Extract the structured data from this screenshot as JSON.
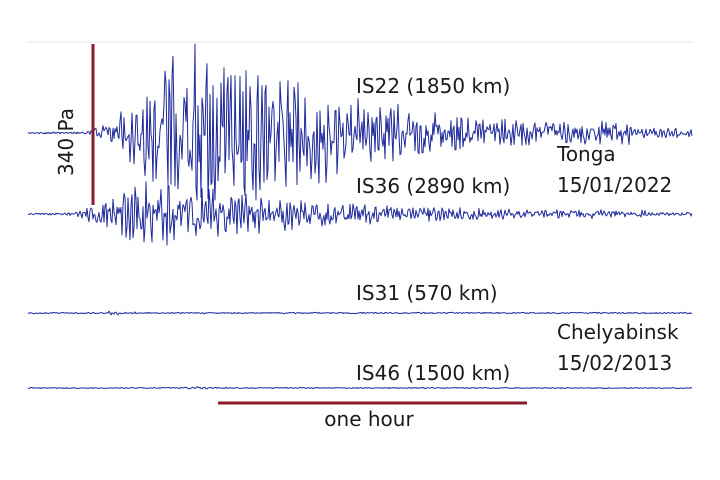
{
  "chart_data": {
    "type": "line",
    "title": "",
    "xlabel": "",
    "ylabel": "",
    "grid": false,
    "scale_bars": {
      "amplitude": {
        "label": "340 Pa",
        "value_pa": 340
      },
      "time": {
        "label": "one hour",
        "value_s": 3600
      }
    },
    "events": [
      {
        "name": "Tonga",
        "date": "15/01/2022"
      },
      {
        "name": "Chelyabinsk",
        "date": "15/02/2013"
      }
    ],
    "series": [
      {
        "station": "IS22 (1850 km)",
        "event": 0,
        "peak_amplitude_pa": 340,
        "signal_start_h": 0.17,
        "signal_peak_h": 0.55,
        "signal_end_h": 1.65
      },
      {
        "station": "IS36 (2890 km)",
        "event": 0,
        "peak_amplitude_pa": 110,
        "signal_start_h": 0.1,
        "signal_peak_h": 0.38,
        "signal_end_h": 1.7
      },
      {
        "station": "IS31 (570 km)",
        "event": 1,
        "peak_amplitude_pa": 6,
        "signal_start_h": 0.22,
        "signal_peak_h": 0.27,
        "signal_end_h": 0.4
      },
      {
        "station": "IS46 (1500 km)",
        "event": 1,
        "peak_amplitude_pa": 4,
        "signal_start_h": 0.4,
        "signal_peak_h": 0.55,
        "signal_end_h": 0.7
      }
    ]
  }
}
